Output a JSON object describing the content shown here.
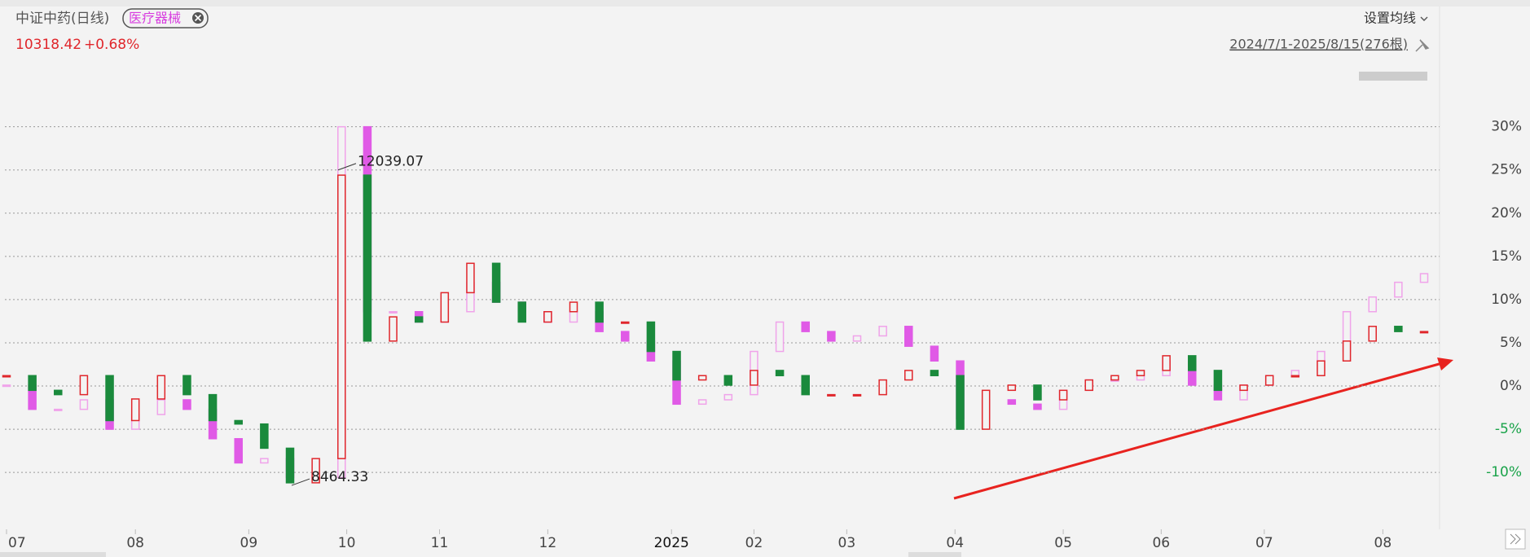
{
  "header": {
    "title": "中证中药(日线)",
    "tag": "医疗器械",
    "price": "10318.42",
    "change": "+0.68%",
    "ma_button": "设置均线",
    "range": "2024/7/1-2025/8/15(276根)"
  },
  "chart_data": {
    "type": "candlestick",
    "x": [
      0,
      5,
      10,
      15,
      20,
      25,
      30,
      35,
      40,
      45,
      50,
      55,
      60,
      65,
      70,
      75,
      80,
      85,
      90,
      95,
      100,
      105,
      110,
      115,
      120,
      125,
      130,
      135,
      140,
      145,
      150,
      155,
      160,
      165,
      170,
      175,
      180,
      185,
      190,
      195,
      200,
      205,
      210,
      215,
      220,
      225,
      230,
      235,
      240,
      245,
      250,
      255,
      260,
      265,
      270,
      275
    ],
    "series": [
      {
        "name": "中证中药",
        "up_color": "#e0262b",
        "down_color": "#1a8a3c",
        "up_fill": "none",
        "values": [
          1.2,
          -0.5,
          -1,
          1.2,
          -4,
          -1.5,
          1.2,
          -1,
          -4,
          -4.4,
          -7.2,
          -11.2,
          -8.4,
          24.4,
          5.2,
          8,
          7.4,
          10.8,
          14.2,
          9.7,
          7.4,
          8.6,
          9.7,
          7.4,
          7.4,
          4,
          0.7,
          1.2,
          0.1,
          1.8,
          1.2,
          -1,
          -1,
          -1,
          0.7,
          1.8,
          1.2,
          -5,
          -0.5,
          0.1,
          -1.6,
          -0.5,
          0.7,
          1.2,
          1.8,
          3.5,
          1.8,
          -0.5,
          0.1,
          1.2,
          1.2,
          2.9,
          5.2,
          6.9,
          6.3,
          6.3
        ]
      },
      {
        "name": "医疗器械",
        "up_color": "#f0a3ea",
        "down_color": "#e05ae6",
        "up_fill": "none",
        "values": [
          0.1,
          -2.7,
          -2.7,
          -1.6,
          -5,
          -3.3,
          -1.6,
          -2.7,
          -6.1,
          -8.9,
          -8.4,
          -10.6,
          -10.6,
          30,
          8.6,
          8.6,
          7.4,
          8.6,
          12,
          9.7,
          8.6,
          7.4,
          8.6,
          6.3,
          5.2,
          2.9,
          -2.1,
          -1.6,
          -1,
          4,
          7.4,
          6.3,
          5.2,
          5.8,
          6.9,
          4.6,
          2.9,
          -3.8,
          -1.6,
          -2.1,
          -2.7,
          -0.5,
          0.7,
          0.7,
          1.2,
          2.9,
          0.1,
          -1.6,
          0.1,
          1.2,
          1.8,
          4,
          8.6,
          10.3,
          12,
          13
        ]
      }
    ],
    "annotations": [
      {
        "text": "12039.07",
        "x": 64,
        "y": 25
      },
      {
        "text": "8464.33",
        "x": 55,
        "y": -11.5
      }
    ],
    "xlim": [
      0,
      275
    ],
    "xticks": [
      {
        "value": 0,
        "label": "07"
      },
      {
        "value": 25,
        "label": "08"
      },
      {
        "value": 47,
        "label": "09"
      },
      {
        "value": 66,
        "label": "10"
      },
      {
        "value": 84,
        "label": "11"
      },
      {
        "value": 105,
        "label": "12"
      },
      {
        "value": 129,
        "label": "2025"
      },
      {
        "value": 145,
        "label": "02"
      },
      {
        "value": 163,
        "label": "03"
      },
      {
        "value": 184,
        "label": "04"
      },
      {
        "value": 205,
        "label": "05"
      },
      {
        "value": 224,
        "label": "06"
      },
      {
        "value": 244,
        "label": "07"
      },
      {
        "value": 267,
        "label": "08"
      }
    ],
    "ylim": [
      -16,
      35
    ],
    "yticks": [
      {
        "value": -10,
        "label": "-10%"
      },
      {
        "value": -5,
        "label": "-5%"
      },
      {
        "value": 0,
        "label": "0%"
      },
      {
        "value": 5,
        "label": "5%"
      },
      {
        "value": 10,
        "label": "10%"
      },
      {
        "value": 15,
        "label": "15%"
      },
      {
        "value": 20,
        "label": "20%"
      },
      {
        "value": 25,
        "label": "25%"
      },
      {
        "value": 30,
        "label": "30%"
      }
    ],
    "grid": true,
    "positive_tick_color": "#444444",
    "negative_tick_color": "#1aa34a"
  }
}
